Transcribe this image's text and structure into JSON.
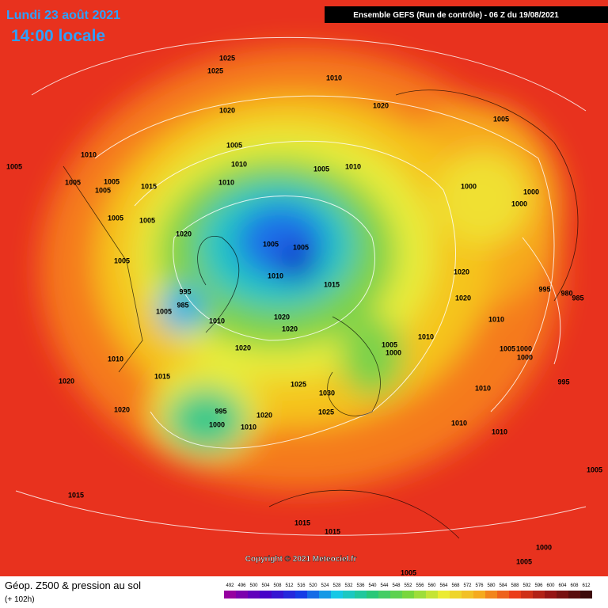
{
  "header": {
    "date": "Lundi 23 août 2021",
    "time": "14:00 locale",
    "run": "Ensemble GEFS  (Run de contrôle)  -  06 Z du 19/08/2021"
  },
  "map": {
    "copyright": "Copyright © 2021 Meteociel.fr",
    "pressure_labels": [
      1025,
      1025,
      1010,
      1020,
      1020,
      1005,
      1005,
      1010,
      1005,
      1010,
      1010,
      1005,
      1005,
      1005,
      1005,
      1015,
      1010,
      1000,
      1000,
      1000,
      1005,
      1005,
      1020,
      1005,
      1005,
      1005,
      1010,
      1015,
      1020,
      995,
      985,
      1005,
      1020,
      995,
      980,
      985,
      1010,
      1020,
      1020,
      1010,
      1010,
      1005,
      1000,
      1005,
      1000,
      1000,
      1020,
      1010,
      1015,
      1025,
      995,
      1020,
      1030,
      1010,
      995,
      1025,
      1010,
      1020,
      1000,
      1010,
      1010,
      1020,
      1005,
      1015,
      1015,
      1015,
      1000,
      1005,
      1005
    ]
  },
  "footer": {
    "title": "Géop. Z500 & pression au sol",
    "lead": "(+ 102h)",
    "scale": [
      492,
      496,
      500,
      504,
      508,
      512,
      516,
      520,
      524,
      528,
      532,
      536,
      540,
      544,
      548,
      552,
      556,
      560,
      564,
      568,
      572,
      576,
      580,
      584,
      588,
      592,
      596,
      600,
      604,
      608,
      612
    ]
  }
}
